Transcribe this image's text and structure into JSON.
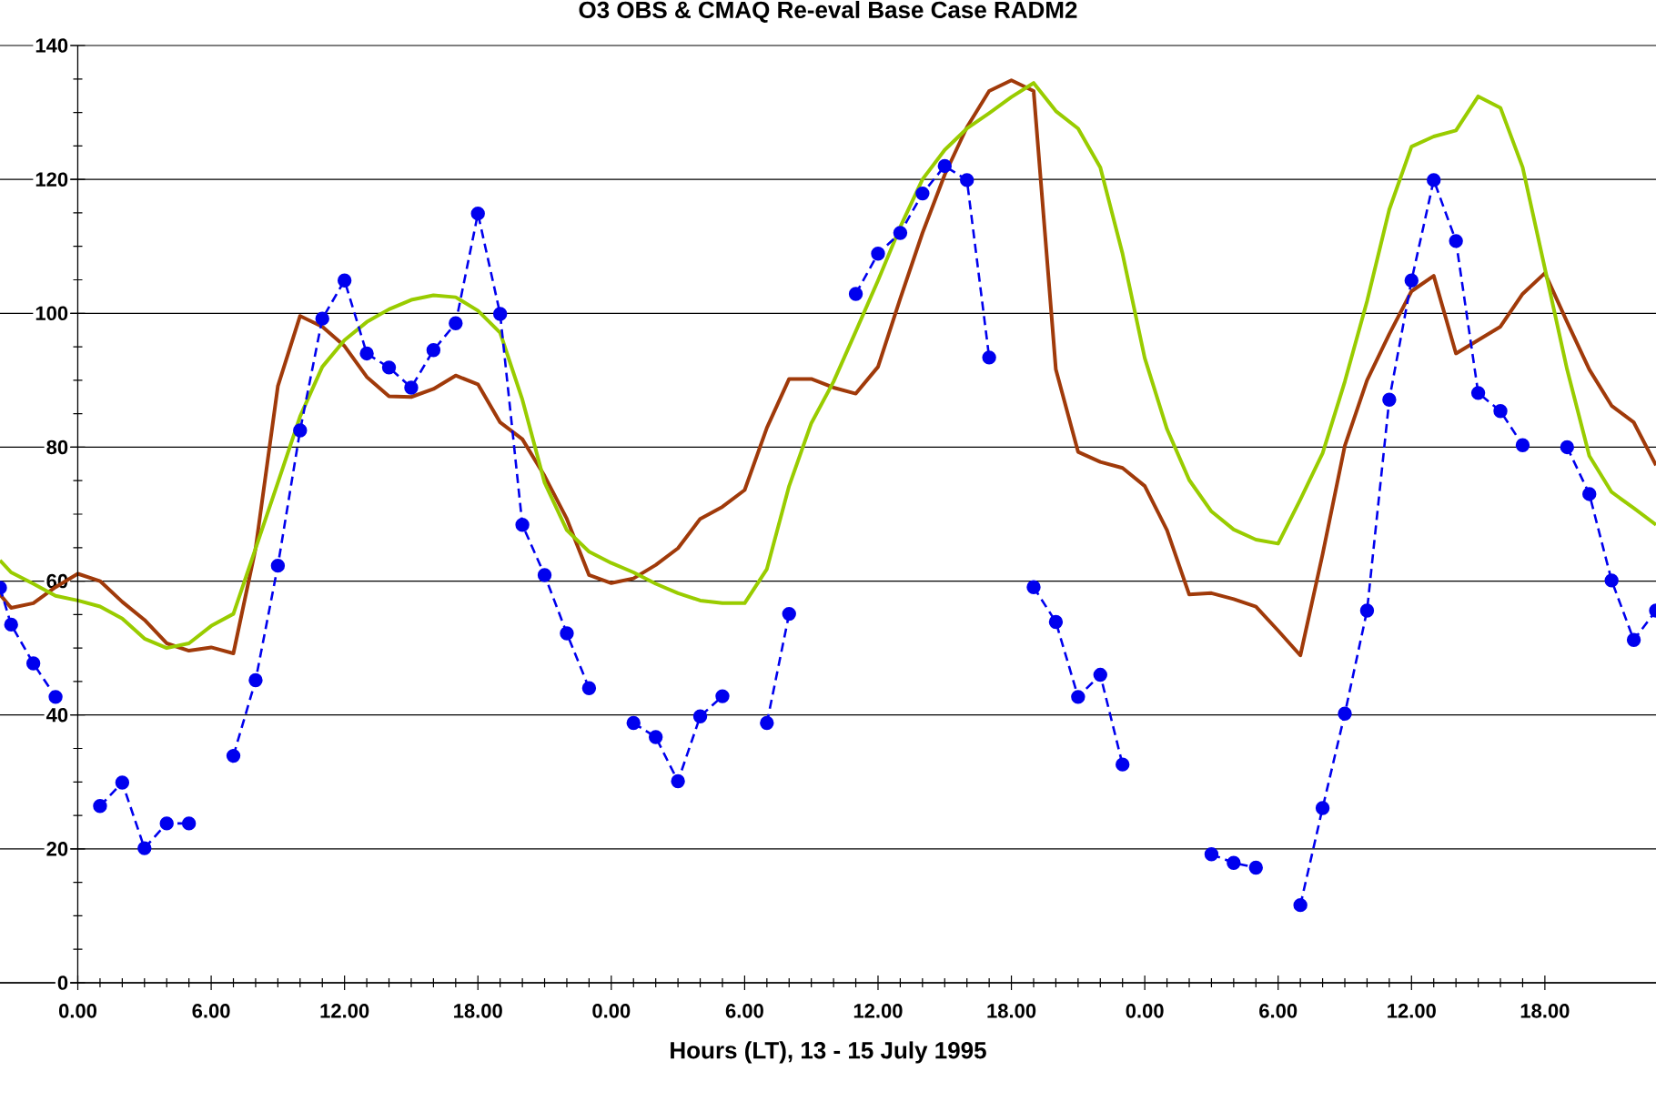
{
  "chart_data": {
    "type": "line",
    "title": "O3 OBS & CMAQ Re-eval Base Case RADM2",
    "xlabel": "Hours (LT), 13 - 15 July 1995",
    "x": [
      "1995-07-12T20:30",
      "1995-07-12T21:00",
      "1995-07-12T22:00",
      "1995-07-12T23:00",
      "1995-07-13T00:00",
      "1995-07-13T01:00",
      "1995-07-13T02:00",
      "1995-07-13T03:00",
      "1995-07-13T04:00",
      "1995-07-13T05:00",
      "1995-07-13T06:00",
      "1995-07-13T07:00",
      "1995-07-13T08:00",
      "1995-07-13T09:00",
      "1995-07-13T10:00",
      "1995-07-13T11:00",
      "1995-07-13T12:00",
      "1995-07-13T13:00",
      "1995-07-13T14:00",
      "1995-07-13T15:00",
      "1995-07-13T16:00",
      "1995-07-13T17:00",
      "1995-07-13T18:00",
      "1995-07-13T19:00",
      "1995-07-13T20:00",
      "1995-07-13T21:00",
      "1995-07-13T22:00",
      "1995-07-13T23:00",
      "1995-07-14T00:00",
      "1995-07-14T01:00",
      "1995-07-14T02:00",
      "1995-07-14T03:00",
      "1995-07-14T04:00",
      "1995-07-14T05:00",
      "1995-07-14T06:00",
      "1995-07-14T07:00",
      "1995-07-14T08:00",
      "1995-07-14T09:00",
      "1995-07-14T10:00",
      "1995-07-14T11:00",
      "1995-07-14T12:00",
      "1995-07-14T13:00",
      "1995-07-14T14:00",
      "1995-07-14T15:00",
      "1995-07-14T16:00",
      "1995-07-14T17:00",
      "1995-07-14T18:00",
      "1995-07-14T19:00",
      "1995-07-14T20:00",
      "1995-07-14T21:00",
      "1995-07-14T22:00",
      "1995-07-14T23:00",
      "1995-07-15T00:00",
      "1995-07-15T01:00",
      "1995-07-15T02:00",
      "1995-07-15T03:00",
      "1995-07-15T04:00",
      "1995-07-15T05:00",
      "1995-07-15T06:00",
      "1995-07-15T07:00",
      "1995-07-15T08:00",
      "1995-07-15T09:00",
      "1995-07-15T10:00",
      "1995-07-15T11:00",
      "1995-07-15T12:00",
      "1995-07-15T13:00",
      "1995-07-15T14:00",
      "1995-07-15T15:00",
      "1995-07-15T16:00",
      "1995-07-15T17:00",
      "1995-07-15T18:00",
      "1995-07-15T19:00",
      "1995-07-15T20:00",
      "1995-07-15T21:00",
      "1995-07-15T22:00",
      "1995-07-15T23:00"
    ],
    "series": [
      {
        "color": "#a03a0a",
        "line_style": "solid",
        "marker": "none",
        "values": [
          58,
          56,
          56.7,
          59.1,
          61.1,
          60,
          56.9,
          54.2,
          50.7,
          49.6,
          50.1,
          49.2,
          64.9,
          89.1,
          99.6,
          98,
          95.1,
          90.5,
          87.6,
          87.5,
          88.7,
          90.7,
          89.4,
          83.7,
          81.2,
          75.7,
          69.3,
          60.9,
          59.7,
          60.4,
          62.4,
          64.9,
          69.3,
          71.1,
          73.6,
          82.9,
          90.2,
          90.2,
          88.9,
          88,
          92,
          102.2,
          112,
          120.7,
          127.8,
          133.2,
          134.8,
          133.2,
          91.6,
          79.3,
          77.8,
          76.9,
          74.2,
          67.6,
          58,
          58.2,
          57.3,
          56.2,
          52.6,
          48.9,
          64,
          80.2,
          90,
          96.9,
          103.3,
          105.6,
          94,
          96,
          98,
          102.9,
          106,
          98.7,
          91.6,
          86.2,
          83.7,
          77.3
        ]
      },
      {
        "color": "#99cc00",
        "line_style": "solid",
        "marker": "none",
        "values": [
          63.1,
          61.3,
          59.6,
          57.8,
          57.1,
          56.2,
          54.4,
          51.4,
          50,
          50.7,
          53.3,
          55.1,
          64.9,
          74.7,
          84.6,
          92,
          96,
          98.7,
          100.6,
          102,
          102.7,
          102.4,
          100.4,
          97.1,
          87.1,
          74.7,
          67.6,
          64.4,
          62.7,
          61.3,
          59.6,
          58.2,
          57.1,
          56.7,
          56.7,
          61.8,
          74.2,
          83.6,
          89.8,
          97.3,
          104.9,
          112.9,
          120,
          124.4,
          127.6,
          129.9,
          132.3,
          134.4,
          130.2,
          127.6,
          121.8,
          108.9,
          93.3,
          82.7,
          75.1,
          70.4,
          67.7,
          66.2,
          65.6,
          72.2,
          79.1,
          89.8,
          101.8,
          115.5,
          124.9,
          126.4,
          127.3,
          132.4,
          130.7,
          121.8,
          106.7,
          91.6,
          78.7,
          73.3,
          70.9,
          68.4
        ]
      },
      {
        "color": "#0000ee",
        "line_style": "dashed",
        "marker": "circle",
        "values": [
          59,
          53.5,
          47.7,
          42.7,
          null,
          26.4,
          29.9,
          20.1,
          23.8,
          23.8,
          null,
          33.9,
          45.2,
          62.3,
          82.5,
          99.2,
          104.9,
          94,
          91.9,
          88.9,
          94.5,
          98.5,
          114.9,
          99.9,
          68.4,
          60.9,
          52.2,
          44,
          null,
          38.8,
          36.7,
          30.1,
          39.8,
          42.8,
          null,
          38.8,
          55.1,
          null,
          null,
          102.9,
          108.9,
          112,
          117.9,
          122,
          119.9,
          93.4,
          null,
          59.1,
          53.9,
          42.7,
          46,
          32.6,
          null,
          null,
          null,
          19.2,
          17.9,
          17.2,
          null,
          11.6,
          26.1,
          40.2,
          55.6,
          87.1,
          104.9,
          119.9,
          110.8,
          88.1,
          85.4,
          80.3,
          null,
          80,
          73,
          60.1,
          51.2,
          55.6
        ]
      }
    ],
    "xlim": [
      "1995-07-12T20:30",
      "1995-07-15T23:00"
    ],
    "xticks": [
      {
        "value": "1995-07-13T00:00",
        "label": "0.00"
      },
      {
        "value": "1995-07-13T06:00",
        "label": "6.00"
      },
      {
        "value": "1995-07-13T12:00",
        "label": "12.00"
      },
      {
        "value": "1995-07-13T18:00",
        "label": "18.00"
      },
      {
        "value": "1995-07-14T00:00",
        "label": "0.00"
      },
      {
        "value": "1995-07-14T06:00",
        "label": "6.00"
      },
      {
        "value": "1995-07-14T12:00",
        "label": "12.00"
      },
      {
        "value": "1995-07-14T18:00",
        "label": "18.00"
      },
      {
        "value": "1995-07-15T00:00",
        "label": "0.00"
      },
      {
        "value": "1995-07-15T06:00",
        "label": "6.00"
      },
      {
        "value": "1995-07-15T12:00",
        "label": "12.00"
      },
      {
        "value": "1995-07-15T18:00",
        "label": "18.00"
      }
    ],
    "ylim": [
      0,
      140
    ],
    "yticks": [
      0,
      20,
      40,
      60,
      80,
      100,
      120,
      140
    ],
    "grid": "y"
  }
}
